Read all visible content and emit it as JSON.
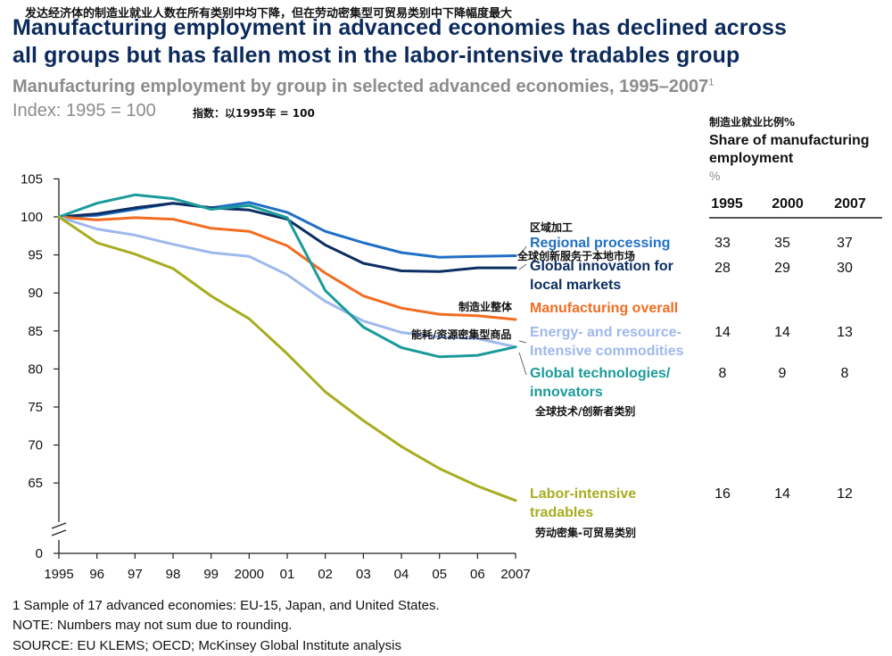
{
  "cn_title": "发达经济体的制造业就业人数在所有类别中均下降，但在劳动密集型可贸易类别中下降幅度最大",
  "title_line1": "Manufacturing employment in advanced economies has declined across",
  "title_line2": "all groups but has fallen most in the labor-intensive tradables group",
  "subtitle": "Manufacturing employment by group in selected advanced economies, 1995–2007",
  "subtitle_footnote_mark": "1",
  "index_label": "Index: 1995 = 100",
  "index_label_cn": "指数：以1995年 = 100",
  "share_table": {
    "title_cn": "制造业就业比例%",
    "title": "Share of manufacturing employment",
    "unit": "%",
    "years": [
      "1995",
      "2000",
      "2007"
    ],
    "rows": [
      {
        "series": "Regional processing",
        "values": [
          "33",
          "35",
          "37"
        ]
      },
      {
        "series": "Global innovation for local markets",
        "values": [
          "28",
          "29",
          "30"
        ]
      },
      {
        "series": "Energy- and resource-Intensive commodities",
        "values": [
          "14",
          "14",
          "13"
        ]
      },
      {
        "series": "Global technologies/innovators",
        "values": [
          "8",
          "9",
          "8"
        ]
      },
      {
        "series": "Labor-intensive tradables",
        "values": [
          "16",
          "14",
          "12"
        ]
      }
    ]
  },
  "chart_data": {
    "type": "line",
    "x": [
      "1995",
      "96",
      "97",
      "98",
      "99",
      "2000",
      "01",
      "02",
      "03",
      "04",
      "05",
      "06",
      "2007"
    ],
    "yticks": [
      0,
      65,
      70,
      75,
      80,
      85,
      90,
      95,
      100,
      105
    ],
    "ylim": [
      0,
      105
    ],
    "axis_break": true,
    "grid": false,
    "series": [
      {
        "name": "Regional processing",
        "name_cn": "区域加工",
        "color": "#1f6fc5",
        "values": [
          100,
          100.2,
          101,
          101.8,
          101.2,
          101.9,
          100.6,
          98.1,
          96.6,
          95.3,
          94.7,
          94.8,
          94.9
        ]
      },
      {
        "name": "Global innovation for local markets",
        "name_cn": "全球创新服务于本地市场",
        "color": "#0d2e63",
        "values": [
          100,
          100.4,
          101.2,
          101.8,
          101.2,
          100.9,
          99.7,
          96.3,
          93.9,
          92.9,
          92.8,
          93.3,
          93.3
        ]
      },
      {
        "name": "Manufacturing overall",
        "name_cn": "制造业整体",
        "color": "#f26d21",
        "values": [
          100,
          99.6,
          99.9,
          99.7,
          98.5,
          98.1,
          96.2,
          92.6,
          89.6,
          88,
          87.2,
          87,
          86.5
        ]
      },
      {
        "name": "Energy- and resource-Intensive commodities",
        "name_cn": "能耗/资源密集型商品",
        "color": "#9eb8ec",
        "values": [
          100,
          98.4,
          97.6,
          96.4,
          95.3,
          94.8,
          92.4,
          88.9,
          86.3,
          84.8,
          84.2,
          84,
          82.9
        ]
      },
      {
        "name": "Global technologies/ innovators",
        "name_cn": "全球技术/创新者类别",
        "color": "#1a9b9a",
        "values": [
          100,
          101.8,
          102.9,
          102.4,
          101,
          101.5,
          99.9,
          90.3,
          85.5,
          82.8,
          81.6,
          81.8,
          82.9
        ]
      },
      {
        "name": "Labor-intensive tradables",
        "name_cn": "劳动密集-可贸易类别",
        "color": "#a7ad1f",
        "values": [
          100,
          96.6,
          95.1,
          93.2,
          89.6,
          86.6,
          82,
          77,
          73.2,
          69.8,
          66.9,
          64.6,
          62.7
        ]
      }
    ]
  },
  "footnotes": [
    "1  Sample of 17 advanced economies: EU-15, Japan, and United States.",
    "NOTE: Numbers may not sum due to rounding.",
    "SOURCE: EU KLEMS; OECD; McKinsey Global Institute analysis"
  ]
}
